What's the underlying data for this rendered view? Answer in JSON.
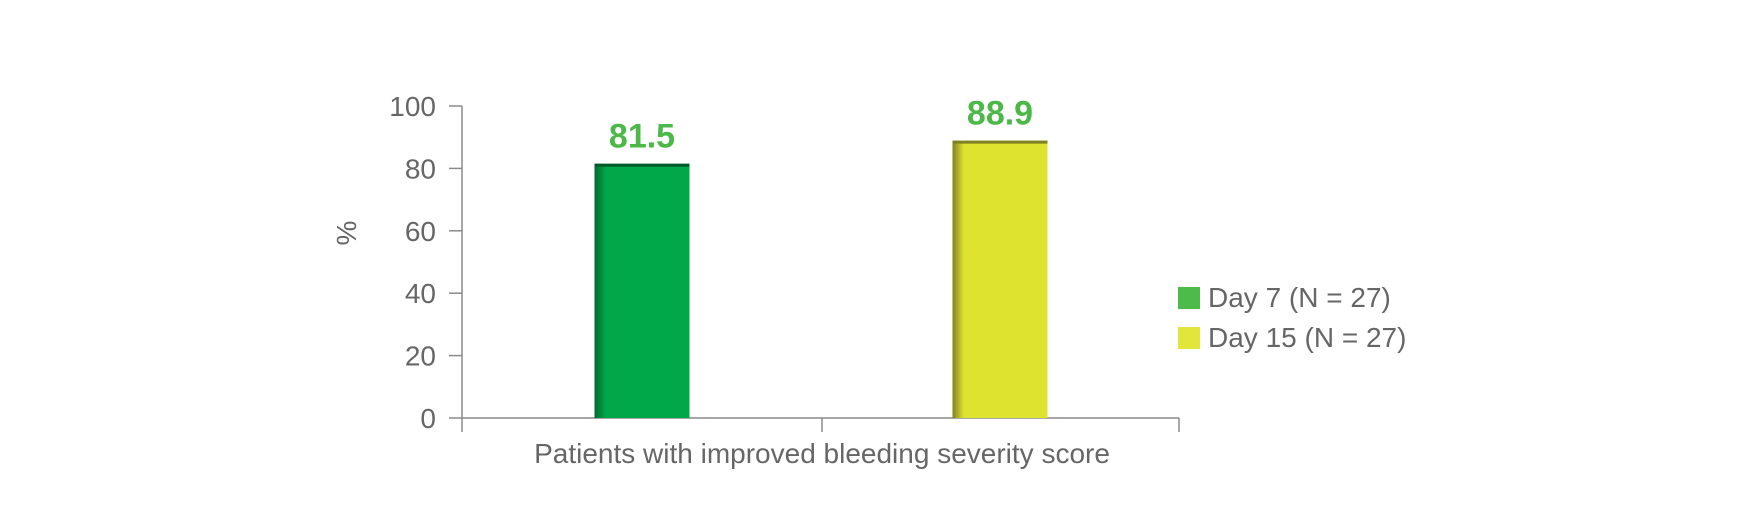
{
  "chart_data": {
    "type": "bar",
    "title": "",
    "ylabel": "%",
    "xlabel": "Patients with improved bleeding severity score",
    "ylim": [
      0,
      100
    ],
    "yticks": [
      0,
      20,
      40,
      60,
      80,
      100
    ],
    "categories": [
      "Patients with improved bleeding severity score"
    ],
    "series": [
      {
        "name": "Day 7 (N = 27)",
        "values": [
          81.5
        ],
        "label": "81.5",
        "color": "#00a84a",
        "legend_color": "#4dbb4a"
      },
      {
        "name": "Day 15 (N = 27)",
        "values": [
          88.9
        ],
        "label": "88.9",
        "color": "#dde32e",
        "legend_color": "#e2e53a"
      }
    ],
    "data_label_color": "#4cb847",
    "axis_color": "#8a8a8a",
    "text_color": "#666666",
    "grid": false,
    "legend_position": "right"
  }
}
